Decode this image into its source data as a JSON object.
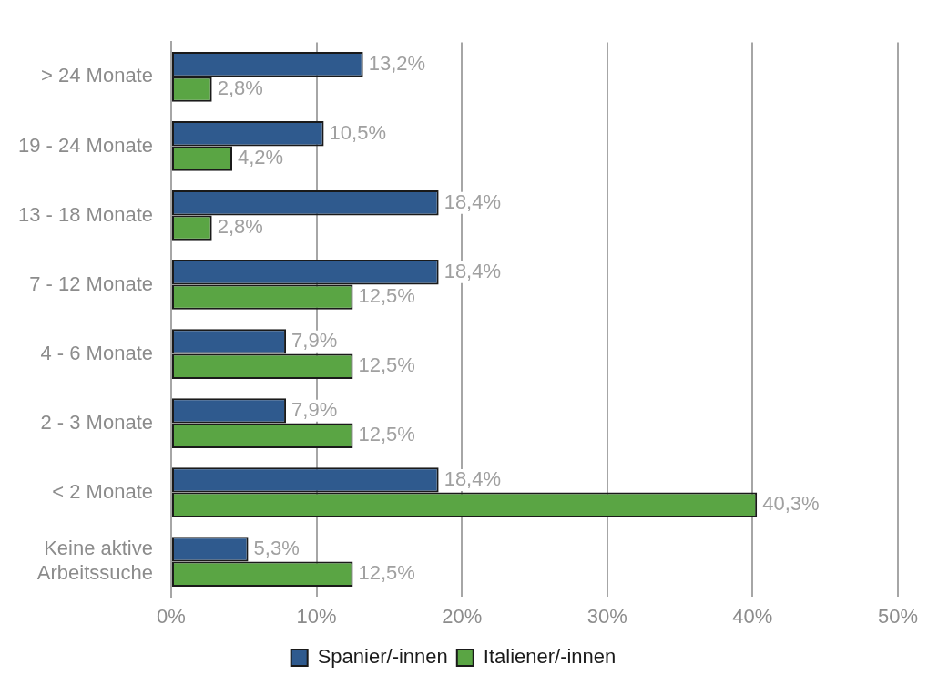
{
  "chart_data": {
    "type": "bar",
    "orientation": "horizontal",
    "categories": [
      "> 24 Monate",
      "19 - 24 Monate",
      "13 - 18 Monate",
      "7 - 12 Monate",
      "4 - 6 Monate",
      "2 - 3 Monate",
      "< 2 Monate",
      "Keine aktive Arbeitssuche"
    ],
    "series": [
      {
        "name": "Spanier/-innen",
        "color": "#2f5a8e",
        "values": [
          13.2,
          10.5,
          18.4,
          18.4,
          7.9,
          7.9,
          18.4,
          5.3
        ],
        "value_labels": [
          "13,2%",
          "10,5%",
          "18,4%",
          "18,4%",
          "7,9%",
          "7,9%",
          "18,4%",
          "5,3%"
        ]
      },
      {
        "name": "Italiener/-innen",
        "color": "#5aa544",
        "values": [
          2.8,
          4.2,
          2.8,
          12.5,
          12.5,
          12.5,
          40.3,
          12.5
        ],
        "value_labels": [
          "2,8%",
          "4,2%",
          "2,8%",
          "12,5%",
          "12,5%",
          "12,5%",
          "40,3%",
          "12,5%"
        ]
      }
    ],
    "xlim": [
      0,
      50
    ],
    "xticks": [
      {
        "value": 0,
        "label": "0%"
      },
      {
        "value": 10,
        "label": "10%"
      },
      {
        "value": 20,
        "label": "20%"
      },
      {
        "value": 30,
        "label": "30%"
      },
      {
        "value": 40,
        "label": "40%"
      },
      {
        "value": 50,
        "label": "50%"
      }
    ],
    "grid": "x",
    "legend": "bottom"
  }
}
